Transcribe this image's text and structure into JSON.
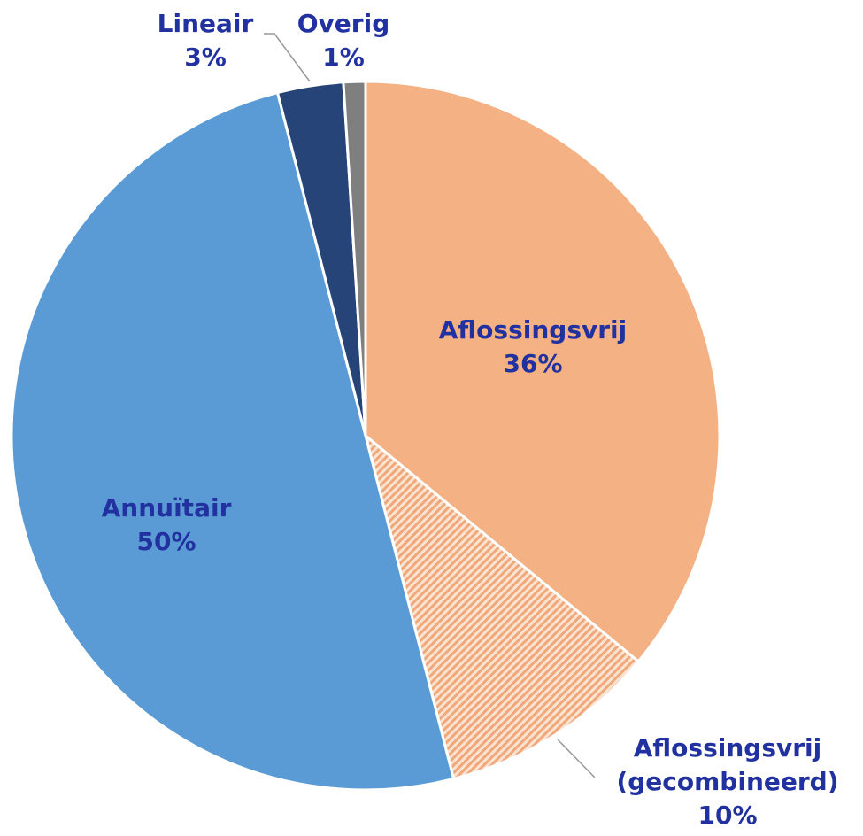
{
  "chart_data": {
    "type": "pie",
    "categories": [
      "Aflossingsvrij",
      "Aflossingsvrij (gecombineerd)",
      "Annuïtair",
      "Lineair",
      "Overig"
    ],
    "values": [
      36,
      10,
      50,
      3,
      1
    ],
    "value_labels": [
      "36%",
      "10%",
      "50%",
      "3%",
      "1%"
    ],
    "colors": [
      "#f4b183",
      "hatch",
      "#5b9bd5",
      "#264478",
      "#7f7f7f"
    ]
  }
}
